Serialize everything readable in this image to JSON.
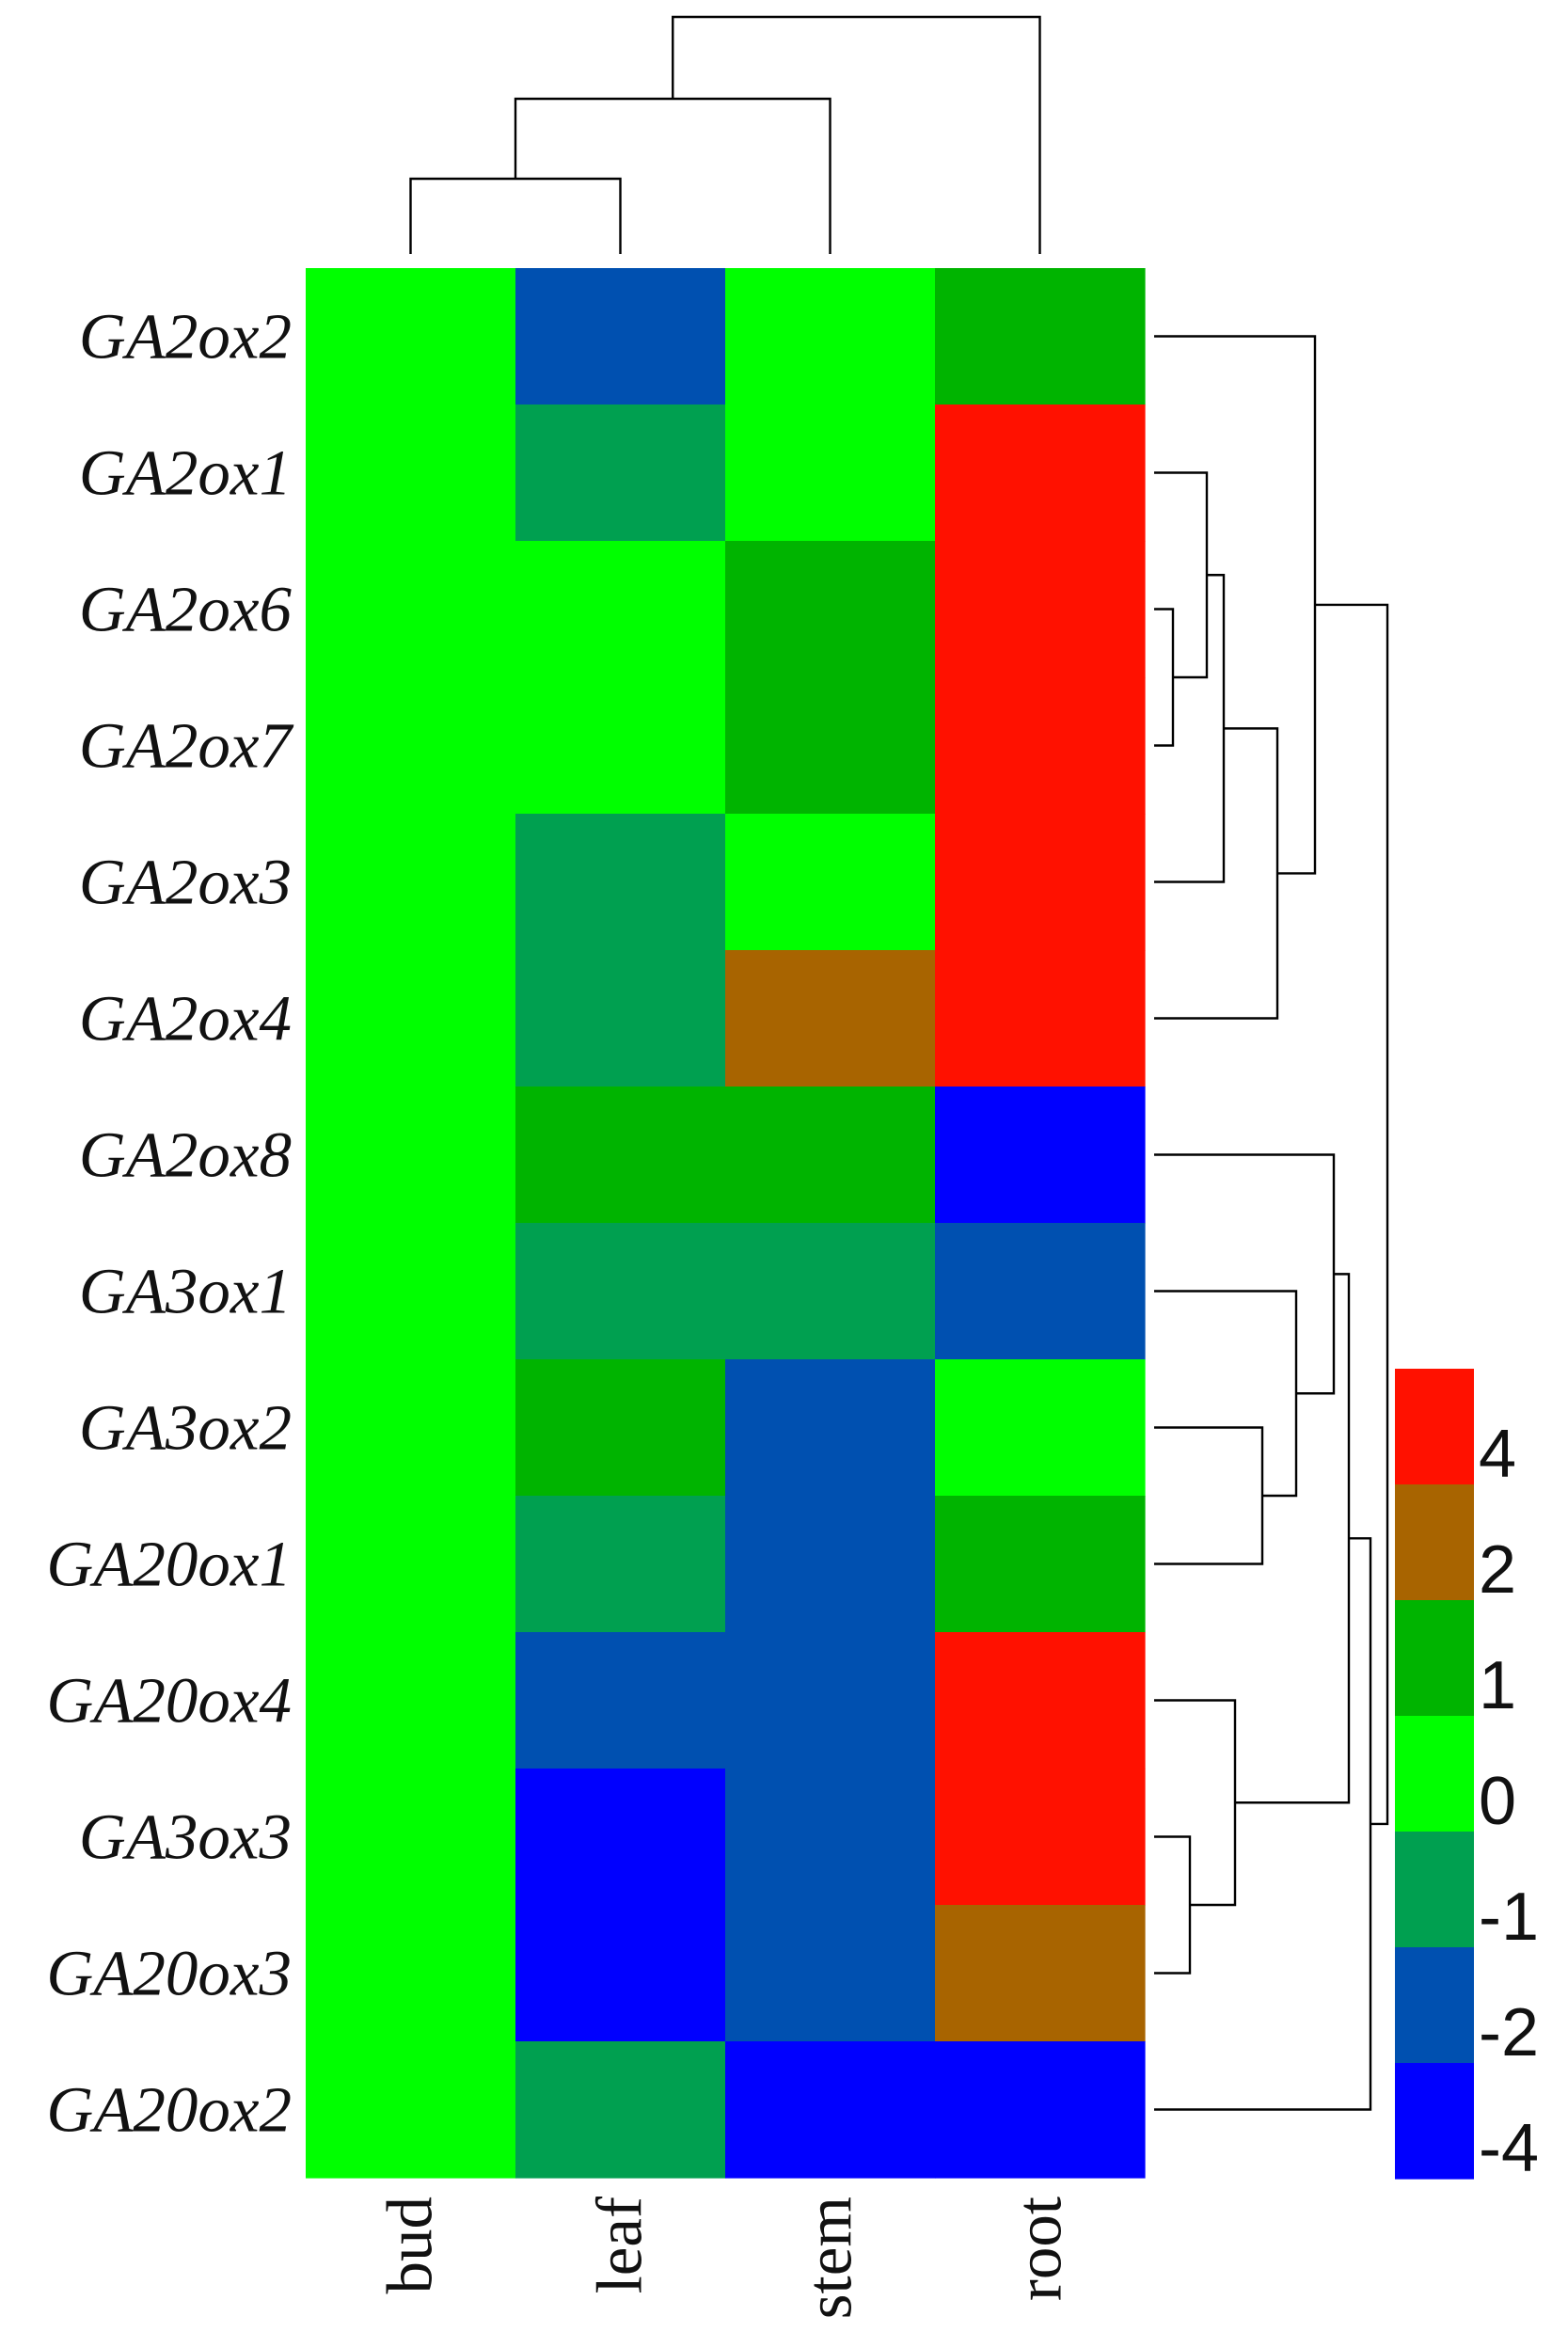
{
  "chart_data": {
    "type": "heatmap",
    "title": "",
    "columns": [
      "bud",
      "leaf",
      "stem",
      "root"
    ],
    "rows": [
      "GA2ox2",
      "GA2ox1",
      "GA2ox6",
      "GA2ox7",
      "GA2ox3",
      "GA2ox4",
      "GA2ox8",
      "GA3ox1",
      "GA3ox2",
      "GA20ox1",
      "GA20ox4",
      "GA3ox3",
      "GA20ox3",
      "GA20ox2"
    ],
    "values": [
      [
        0,
        -2,
        0,
        1
      ],
      [
        0,
        -1,
        0,
        4
      ],
      [
        0,
        0,
        1,
        4
      ],
      [
        0,
        0,
        1,
        4
      ],
      [
        0,
        -1,
        0,
        4
      ],
      [
        0,
        -1,
        2,
        4
      ],
      [
        0,
        1,
        1,
        -4
      ],
      [
        0,
        -1,
        -1,
        -2
      ],
      [
        0,
        1,
        -2,
        0
      ],
      [
        0,
        -1,
        -2,
        1
      ],
      [
        0,
        -2,
        -2,
        4
      ],
      [
        0,
        -4,
        -2,
        4
      ],
      [
        0,
        -4,
        -2,
        2
      ],
      [
        0,
        -1,
        -4,
        -4
      ]
    ],
    "legend": {
      "levels": [
        4,
        2,
        1,
        0,
        -1,
        -2,
        -4
      ],
      "labels": [
        "4",
        "2",
        "1",
        "0",
        "-1",
        "-2",
        "-4"
      ],
      "colors": [
        "#FF1100",
        "#A86400",
        "#00B400",
        "#00FF00",
        "#00A050",
        "#0050B0",
        "#0000FF"
      ],
      "placement": "right"
    },
    "column_dendrogram": true,
    "row_dendrogram": true
  }
}
